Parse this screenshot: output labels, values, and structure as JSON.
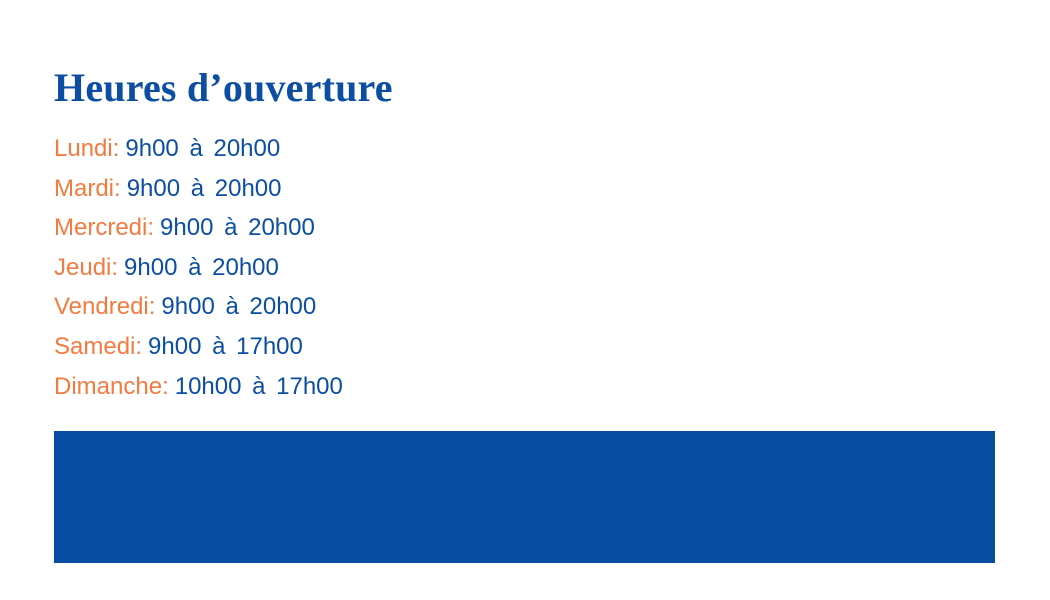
{
  "title": "Heures d’ouverture",
  "hours": [
    {
      "day": "Lundi:",
      "time": "9h00 à 20h00"
    },
    {
      "day": "Mardi:",
      "time": "9h00 à 20h00"
    },
    {
      "day": "Mercredi:",
      "time": "9h00 à 20h00"
    },
    {
      "day": "Jeudi:",
      "time": "9h00 à 20h00"
    },
    {
      "day": "Vendredi:",
      "time": "9h00 à 20h00"
    },
    {
      "day": "Samedi:",
      "time": "9h00 à 17h00"
    },
    {
      "day": "Dimanche:",
      "time": "10h00 à 17h00"
    }
  ],
  "colors": {
    "primary": "#0b4ea2",
    "accent": "#f47b40",
    "banner": "#074ea2"
  }
}
